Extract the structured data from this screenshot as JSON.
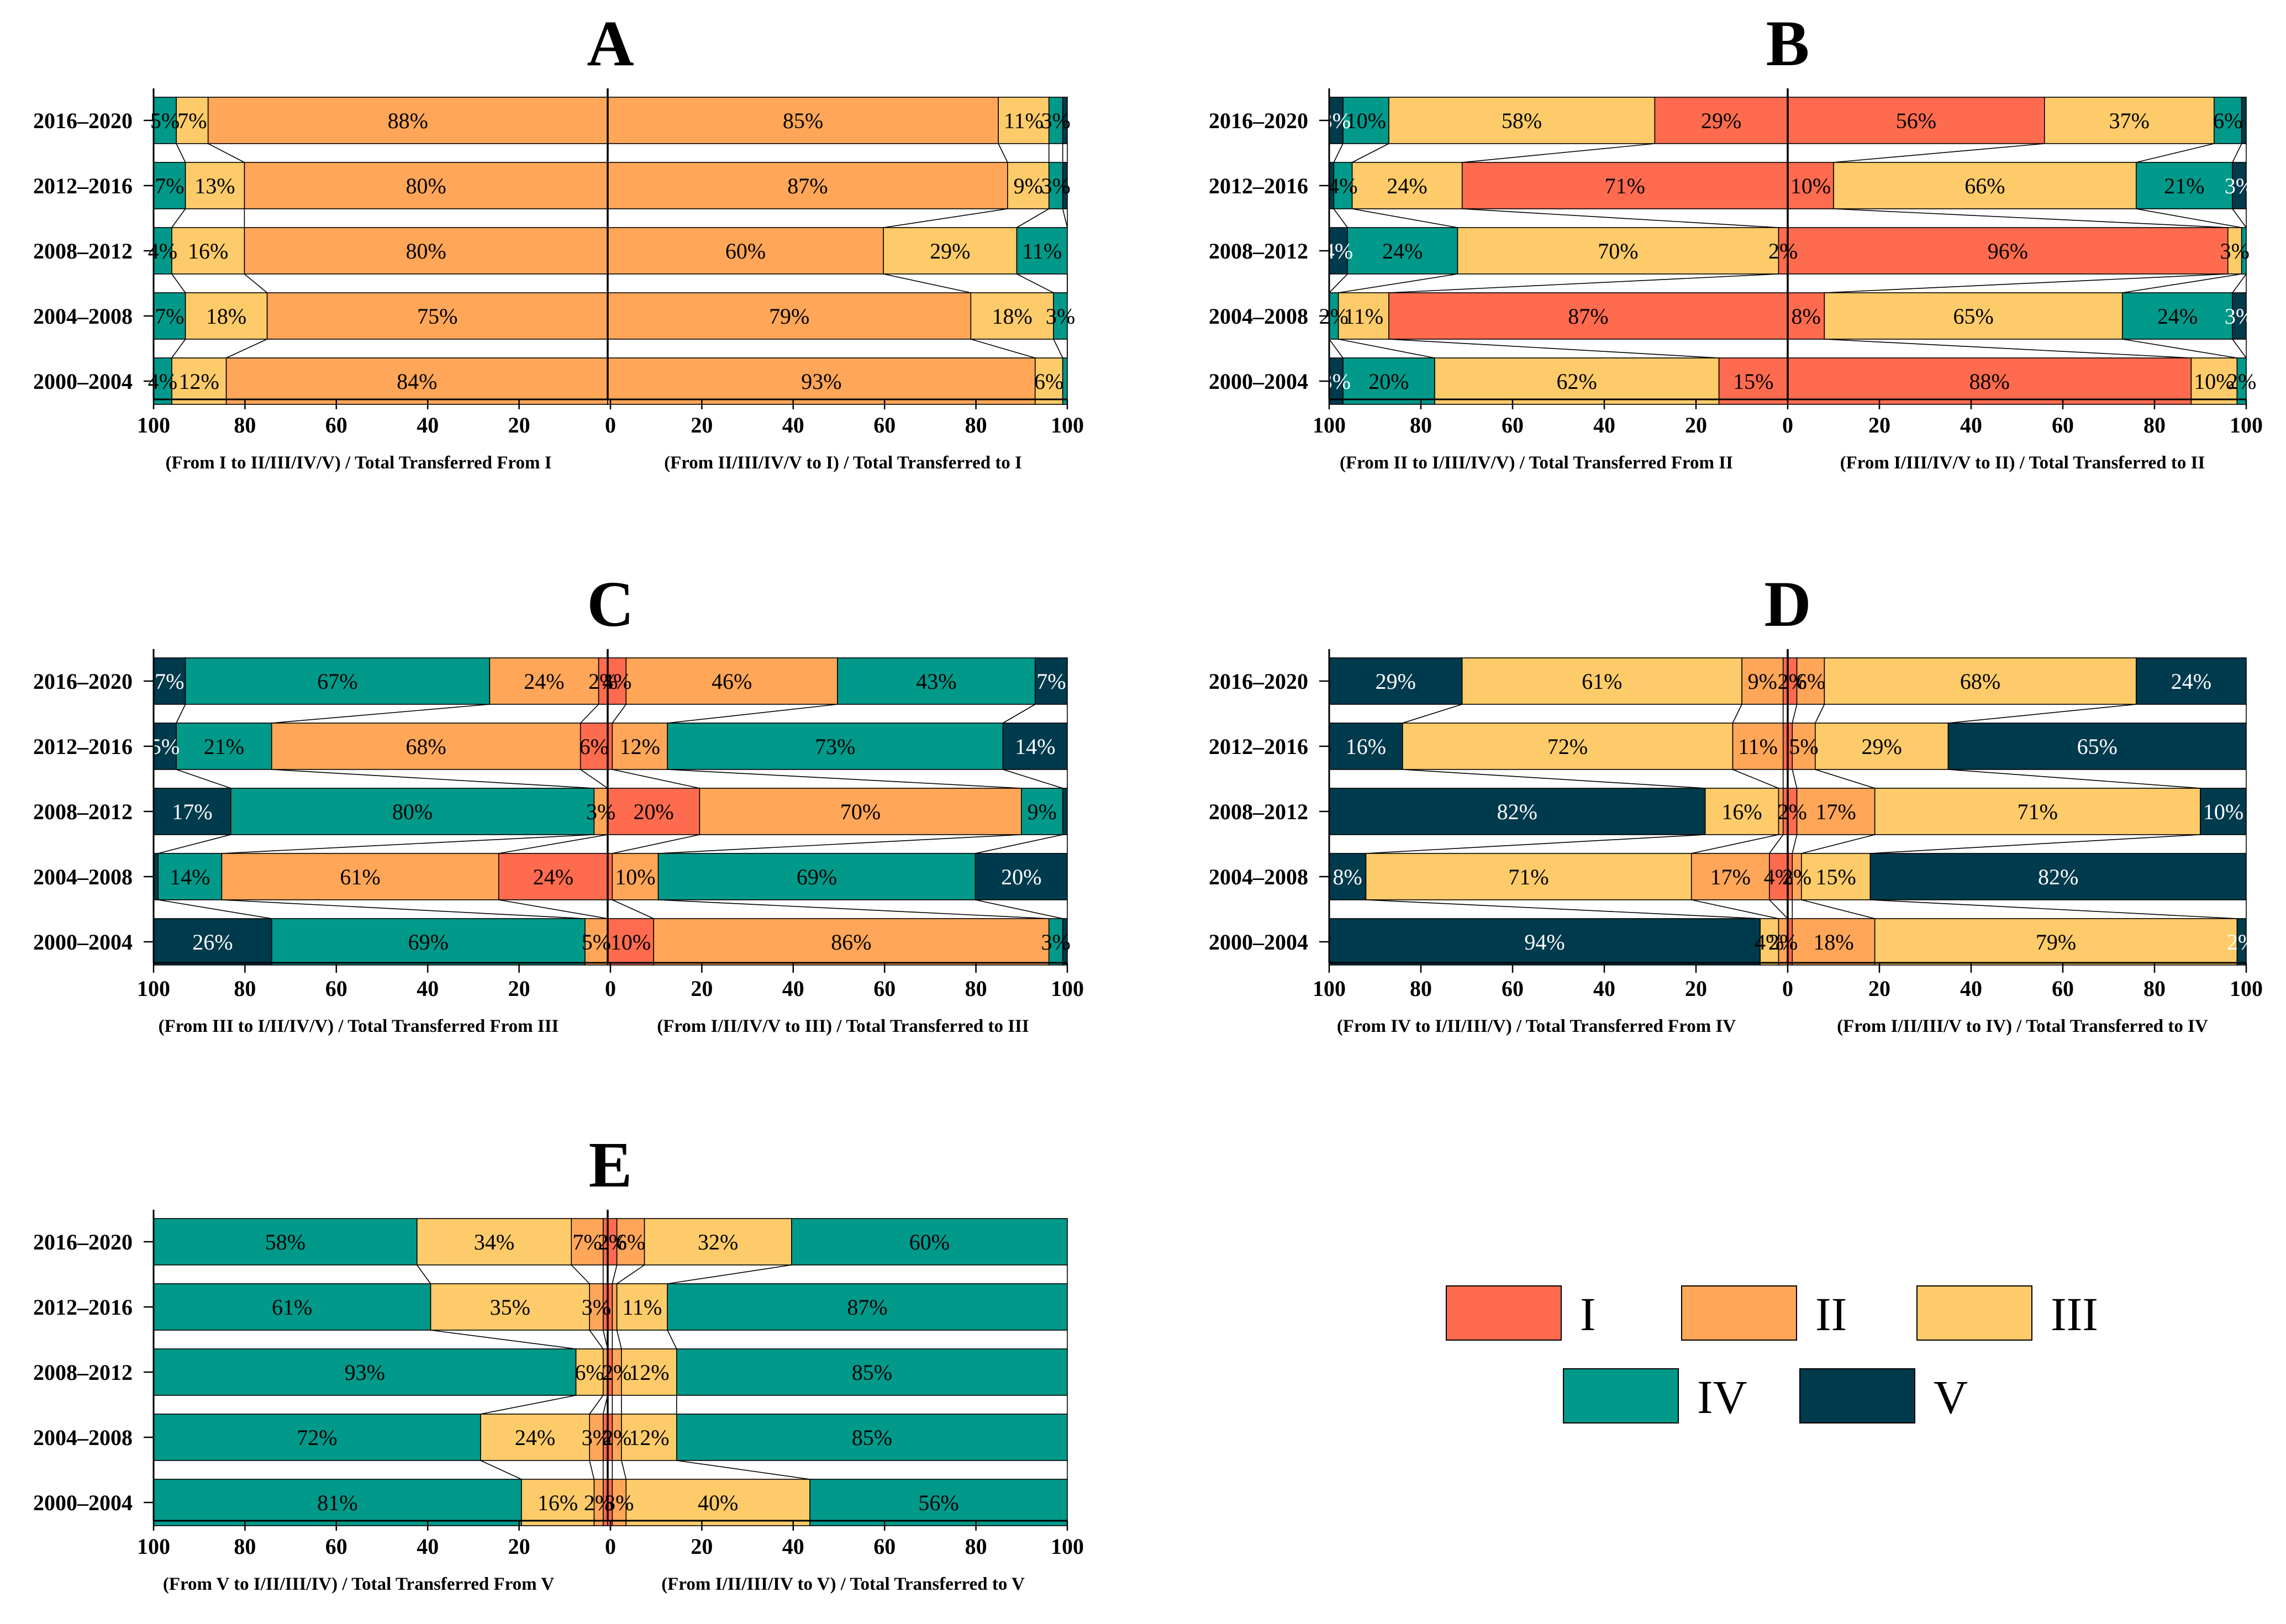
{
  "colors": {
    "I": "#FF6B4E",
    "II": "#FFA658",
    "III": "#FDCB69",
    "IV": "#00998A",
    "V": "#003A4D"
  },
  "legend": [
    {
      "key": "I",
      "label": "I"
    },
    {
      "key": "II",
      "label": "II"
    },
    {
      "key": "III",
      "label": "III"
    },
    {
      "key": "IV",
      "label": "IV"
    },
    {
      "key": "V",
      "label": "V"
    }
  ],
  "chart_data": [
    {
      "panel": "A",
      "type": "bar",
      "orientation": "diverging-horizontal-stacked",
      "categories": [
        "2016–2020",
        "2012–2016",
        "2008–2012",
        "2004–2008",
        "2000–2004"
      ],
      "ticks": [
        "100",
        "80",
        "60",
        "40",
        "20",
        "0",
        "20",
        "40",
        "60",
        "80",
        "100"
      ],
      "xlabel_left": "(From I to II/III/IV/V) / Total Transferred From I",
      "xlabel_right": "(From II/III/IV/V to I) / Total Transferred to I",
      "xlim": [
        100,
        0,
        100
      ],
      "left": [
        {
          "II": 88,
          "III": 7,
          "IV": 5,
          "V": 0
        },
        {
          "II": 80,
          "III": 13,
          "IV": 7,
          "V": 0
        },
        {
          "II": 80,
          "III": 16,
          "IV": 4,
          "V": 0
        },
        {
          "II": 75,
          "III": 18,
          "IV": 7,
          "V": 0
        },
        {
          "II": 84,
          "III": 12,
          "IV": 4,
          "V": 0
        }
      ],
      "right": [
        {
          "II": 85,
          "III": 11,
          "IV": 3,
          "V": 1
        },
        {
          "II": 87,
          "III": 9,
          "IV": 3,
          "V": 1
        },
        {
          "II": 60,
          "III": 29,
          "IV": 11,
          "V": 0
        },
        {
          "II": 79,
          "III": 18,
          "IV": 3,
          "V": 0
        },
        {
          "II": 93,
          "III": 6,
          "IV": 1,
          "V": 0
        }
      ]
    },
    {
      "panel": "B",
      "type": "bar",
      "orientation": "diverging-horizontal-stacked",
      "categories": [
        "2016–2020",
        "2012–2016",
        "2008–2012",
        "2004–2008",
        "2000–2004"
      ],
      "ticks": [
        "100",
        "80",
        "60",
        "40",
        "20",
        "0",
        "20",
        "40",
        "60",
        "80",
        "100"
      ],
      "xlabel_left": "(From II to I/III/IV/V) / Total Transferred From II",
      "xlabel_right": "(From I/III/IV/V to II) / Total Transferred to II",
      "xlim": [
        100,
        0,
        100
      ],
      "left": [
        {
          "I": 29,
          "III": 58,
          "IV": 10,
          "V": 3
        },
        {
          "I": 71,
          "III": 24,
          "IV": 4,
          "V": 1
        },
        {
          "I": 2,
          "III": 70,
          "IV": 24,
          "V": 4
        },
        {
          "I": 87,
          "III": 11,
          "IV": 2,
          "V": 0
        },
        {
          "I": 15,
          "III": 62,
          "IV": 20,
          "V": 3
        }
      ],
      "right": [
        {
          "I": 56,
          "III": 37,
          "IV": 6,
          "V": 1
        },
        {
          "I": 10,
          "III": 66,
          "IV": 21,
          "V": 3
        },
        {
          "I": 96,
          "III": 3,
          "IV": 1,
          "V": 0
        },
        {
          "I": 8,
          "III": 65,
          "IV": 24,
          "V": 3
        },
        {
          "I": 88,
          "III": 10,
          "IV": 2,
          "V": 0
        }
      ]
    },
    {
      "panel": "C",
      "type": "bar",
      "orientation": "diverging-horizontal-stacked",
      "categories": [
        "2016–2020",
        "2012–2016",
        "2008–2012",
        "2004–2008",
        "2000–2004"
      ],
      "ticks": [
        "100",
        "80",
        "60",
        "40",
        "20",
        "0",
        "20",
        "40",
        "60",
        "80",
        "100"
      ],
      "xlabel_left": "(From III to I/II/IV/V) / Total Transferred From III",
      "xlabel_right": "(From I/II/IV/V to III) / Total Transferred to III",
      "xlim": [
        100,
        0,
        100
      ],
      "left": [
        {
          "I": 2,
          "II": 24,
          "IV": 67,
          "V": 7
        },
        {
          "I": 6,
          "II": 68,
          "IV": 21,
          "V": 5
        },
        {
          "I": 0,
          "II": 3,
          "IV": 80,
          "V": 17
        },
        {
          "I": 24,
          "II": 61,
          "IV": 14,
          "V": 1
        },
        {
          "I": 0,
          "II": 5,
          "IV": 69,
          "V": 26
        }
      ],
      "right": [
        {
          "I": 4,
          "II": 46,
          "IV": 43,
          "V": 7
        },
        {
          "I": 1,
          "II": 12,
          "IV": 73,
          "V": 14
        },
        {
          "I": 20,
          "II": 70,
          "IV": 9,
          "V": 1
        },
        {
          "I": 1,
          "II": 10,
          "IV": 69,
          "V": 20
        },
        {
          "I": 10,
          "II": 86,
          "IV": 3,
          "V": 1
        }
      ]
    },
    {
      "panel": "D",
      "type": "bar",
      "orientation": "diverging-horizontal-stacked",
      "categories": [
        "2016–2020",
        "2012–2016",
        "2008–2012",
        "2004–2008",
        "2000–2004"
      ],
      "ticks": [
        "100",
        "80",
        "60",
        "40",
        "20",
        "0",
        "20",
        "40",
        "60",
        "80",
        "100"
      ],
      "xlabel_left": "(From IV to I/II/III/V) / Total Transferred From IV",
      "xlabel_right": "(From I/II/III/V to IV) / Total Transferred to IV",
      "xlim": [
        100,
        0,
        100
      ],
      "left": [
        {
          "I": 1,
          "II": 9,
          "III": 61,
          "V": 29
        },
        {
          "I": 1,
          "II": 11,
          "III": 72,
          "V": 16
        },
        {
          "I": 1,
          "II": 1,
          "III": 16,
          "V": 82
        },
        {
          "I": 4,
          "II": 17,
          "III": 71,
          "V": 8
        },
        {
          "I": 0,
          "II": 2,
          "III": 4,
          "V": 94
        }
      ],
      "right": [
        {
          "I": 2,
          "II": 6,
          "III": 68,
          "V": 24
        },
        {
          "I": 1,
          "II": 5,
          "III": 29,
          "V": 65
        },
        {
          "I": 2,
          "II": 17,
          "III": 71,
          "V": 10
        },
        {
          "I": 1,
          "II": 2,
          "III": 15,
          "V": 82
        },
        {
          "I": 1,
          "II": 18,
          "III": 79,
          "V": 2
        }
      ]
    },
    {
      "panel": "E",
      "type": "bar",
      "orientation": "diverging-horizontal-stacked",
      "categories": [
        "2016–2020",
        "2012–2016",
        "2008–2012",
        "2004–2008",
        "2000–2004"
      ],
      "ticks": [
        "100",
        "80",
        "60",
        "40",
        "20",
        "0",
        "20",
        "40",
        "60",
        "80",
        "100"
      ],
      "xlabel_left": "(From V to I/II/III/IV) / Total Transferred From V",
      "xlabel_right": "(From I/II/III/IV to V) / Total Transferred to V",
      "xlim": [
        100,
        0,
        100
      ],
      "left": [
        {
          "I": 1,
          "II": 7,
          "III": 34,
          "IV": 58
        },
        {
          "I": 1,
          "II": 3,
          "III": 35,
          "IV": 61
        },
        {
          "I": 0,
          "II": 1,
          "III": 6,
          "IV": 93
        },
        {
          "I": 1,
          "II": 3,
          "III": 24,
          "IV": 72
        },
        {
          "I": 1,
          "II": 2,
          "III": 16,
          "IV": 81
        }
      ],
      "right": [
        {
          "I": 2,
          "II": 6,
          "III": 32,
          "IV": 60
        },
        {
          "I": 1,
          "II": 1,
          "III": 11,
          "IV": 87
        },
        {
          "I": 1,
          "II": 2,
          "III": 12,
          "IV": 85
        },
        {
          "I": 1,
          "II": 2,
          "III": 12,
          "IV": 85
        },
        {
          "I": 1,
          "II": 3,
          "III": 40,
          "IV": 56
        }
      ]
    }
  ]
}
